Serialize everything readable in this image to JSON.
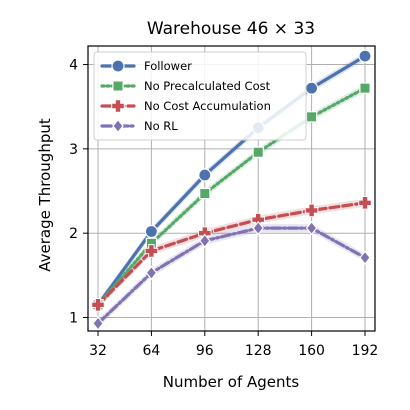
{
  "chart_data": {
    "type": "line",
    "title": "Warehouse 46 × 33",
    "xlabel": "Number of Agents",
    "ylabel": "Average Throughput",
    "x": [
      32,
      64,
      96,
      128,
      160,
      192
    ],
    "x_tick_labels": [
      "32",
      "64",
      "96",
      "128",
      "160",
      "192"
    ],
    "y_ticks": [
      1,
      2,
      3,
      4
    ],
    "y_tick_labels": [
      "1",
      "2",
      "3",
      "4"
    ],
    "xlim": [
      26,
      198
    ],
    "ylim": [
      0.84,
      4.22
    ],
    "grid": true,
    "legend_position": "top-left",
    "series": [
      {
        "name": "Follower",
        "values": [
          1.15,
          2.02,
          2.69,
          3.25,
          3.72,
          4.1
        ],
        "color": "#4c72b0",
        "line_style": "solid",
        "marker": "circle"
      },
      {
        "name": "No Precalculated Cost",
        "values": [
          1.15,
          1.88,
          2.47,
          2.96,
          3.38,
          3.72
        ],
        "color": "#55a868",
        "line_style": "dotted",
        "marker": "square"
      },
      {
        "name": "No Cost Accumulation",
        "values": [
          1.15,
          1.79,
          2.0,
          2.16,
          2.27,
          2.36
        ],
        "color": "#c44e52",
        "line_style": "dashed",
        "marker": "plus"
      },
      {
        "name": "No RL",
        "values": [
          0.93,
          1.53,
          1.91,
          2.06,
          2.06,
          1.71
        ],
        "color": "#8172b3",
        "line_style": "dashdot",
        "marker": "diamond"
      }
    ]
  }
}
